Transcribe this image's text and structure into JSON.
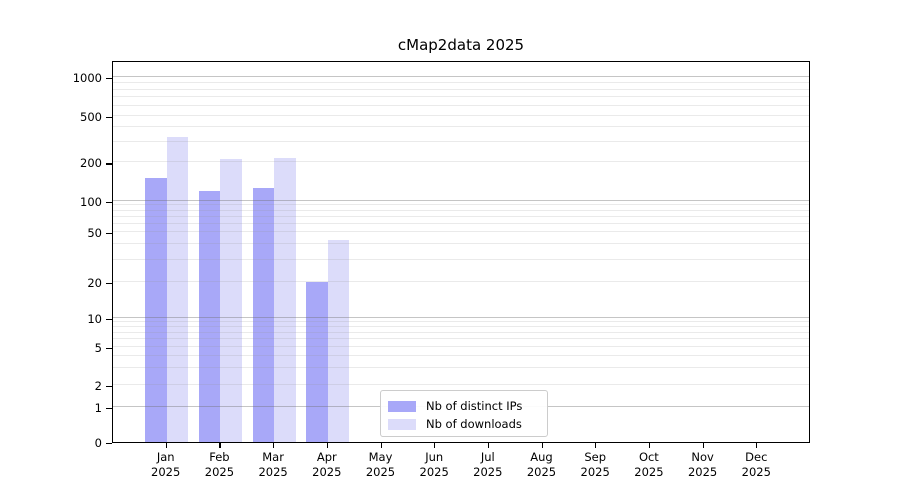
{
  "title": "cMap2data 2025",
  "chart_data": {
    "type": "bar",
    "title": "cMap2data 2025",
    "scale": "symlog",
    "grid": true,
    "legend_position": "lower center-left inside plot",
    "categories": [
      "Jan",
      "Feb",
      "Mar",
      "Apr",
      "May",
      "Jun",
      "Jul",
      "Aug",
      "Sep",
      "Oct",
      "Nov",
      "Dec"
    ],
    "year_label": "2025",
    "yticks": [
      0,
      1,
      2,
      5,
      10,
      20,
      50,
      100,
      200,
      500,
      1000
    ],
    "ylim": [
      0,
      1300
    ],
    "series": [
      {
        "name": "Nb of distinct IPs",
        "color": "#a8a8f8",
        "values": [
          150,
          120,
          125,
          20,
          0,
          0,
          0,
          0,
          0,
          0,
          0,
          0
        ]
      },
      {
        "name": "Nb of downloads",
        "color": "#dcdcfa",
        "values": [
          330,
          215,
          220,
          43,
          0,
          0,
          0,
          0,
          0,
          0,
          0,
          0
        ]
      }
    ]
  }
}
